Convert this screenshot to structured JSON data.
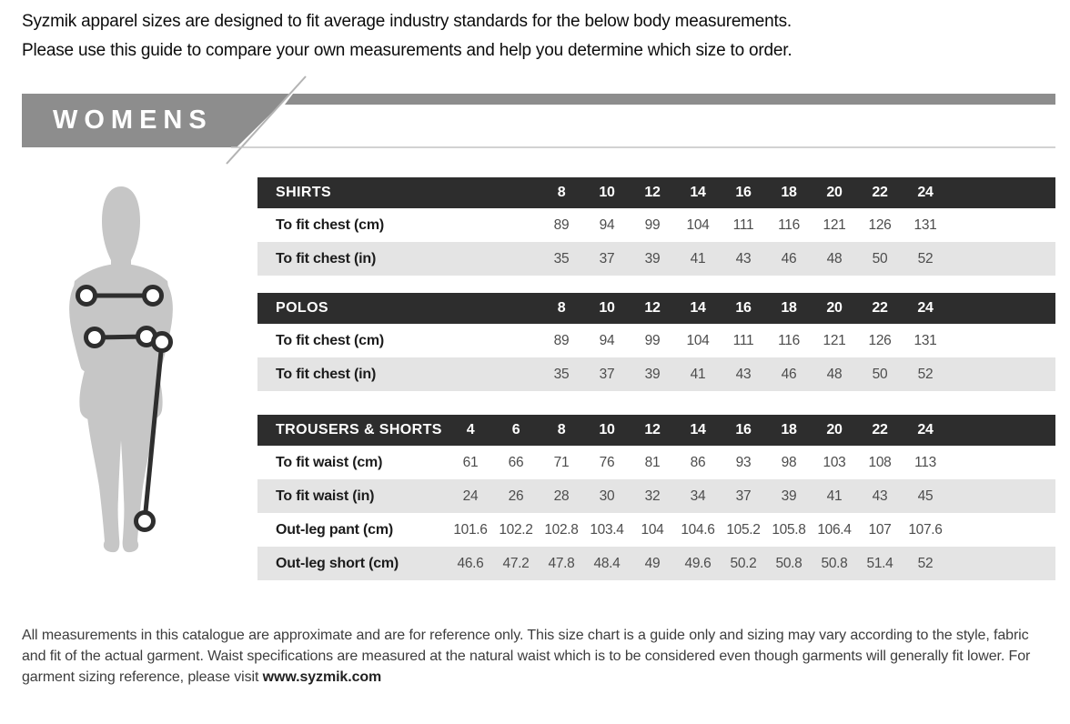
{
  "intro": {
    "line1": "Syzmik apparel sizes are designed to fit average industry standards for the below body measurements.",
    "line2": "Please use this guide to compare your own measurements and help you determine which size to order."
  },
  "section": {
    "title": "WOMENS"
  },
  "silhouette": {
    "name": "womens-body-measurement-diagram"
  },
  "colors": {
    "table_header_bg": "#2d2d2d",
    "row_alt_bg": "#e4e4e4",
    "banner_gray": "#8d8d8d",
    "silhouette_gray": "#c6c6c6",
    "measure_line": "#2e2e2e"
  },
  "table_layout": {
    "total_columns": 11
  },
  "tables": [
    {
      "title": "SHIRTS",
      "sizes": [
        "8",
        "10",
        "12",
        "14",
        "16",
        "18",
        "20",
        "22",
        "24"
      ],
      "rows": [
        {
          "label": "To fit chest (cm)",
          "values": [
            "89",
            "94",
            "99",
            "104",
            "111",
            "116",
            "121",
            "126",
            "131"
          ]
        },
        {
          "label": "To fit chest (in)",
          "values": [
            "35",
            "37",
            "39",
            "41",
            "43",
            "46",
            "48",
            "50",
            "52"
          ]
        }
      ]
    },
    {
      "title": "POLOS",
      "sizes": [
        "8",
        "10",
        "12",
        "14",
        "16",
        "18",
        "20",
        "22",
        "24"
      ],
      "rows": [
        {
          "label": "To fit chest (cm)",
          "values": [
            "89",
            "94",
            "99",
            "104",
            "111",
            "116",
            "121",
            "126",
            "131"
          ]
        },
        {
          "label": "To fit chest (in)",
          "values": [
            "35",
            "37",
            "39",
            "41",
            "43",
            "46",
            "48",
            "50",
            "52"
          ]
        }
      ]
    },
    {
      "title": "TROUSERS & SHORTS",
      "sizes": [
        "4",
        "6",
        "8",
        "10",
        "12",
        "14",
        "16",
        "18",
        "20",
        "22",
        "24"
      ],
      "rows": [
        {
          "label": "To fit waist (cm)",
          "values": [
            "61",
            "66",
            "71",
            "76",
            "81",
            "86",
            "93",
            "98",
            "103",
            "108",
            "113"
          ]
        },
        {
          "label": "To fit waist (in)",
          "values": [
            "24",
            "26",
            "28",
            "30",
            "32",
            "34",
            "37",
            "39",
            "41",
            "43",
            "45"
          ]
        },
        {
          "label": "Out-leg pant (cm)",
          "values": [
            "101.6",
            "102.2",
            "102.8",
            "103.4",
            "104",
            "104.6",
            "105.2",
            "105.8",
            "106.4",
            "107",
            "107.6"
          ]
        },
        {
          "label": "Out-leg short (cm)",
          "values": [
            "46.6",
            "47.2",
            "47.8",
            "48.4",
            "49",
            "49.6",
            "50.2",
            "50.8",
            "50.8",
            "51.4",
            "52"
          ]
        }
      ]
    }
  ],
  "footer": {
    "text": "All measurements in this catalogue are approximate and are for reference only. This size chart is a guide only and sizing may vary according to the style, fabric and fit of the actual garment. Waist specifications are measured at the natural waist which is to be considered even though garments will generally fit lower. For garment sizing reference, please visit ",
    "link": "www.syzmik.com"
  }
}
